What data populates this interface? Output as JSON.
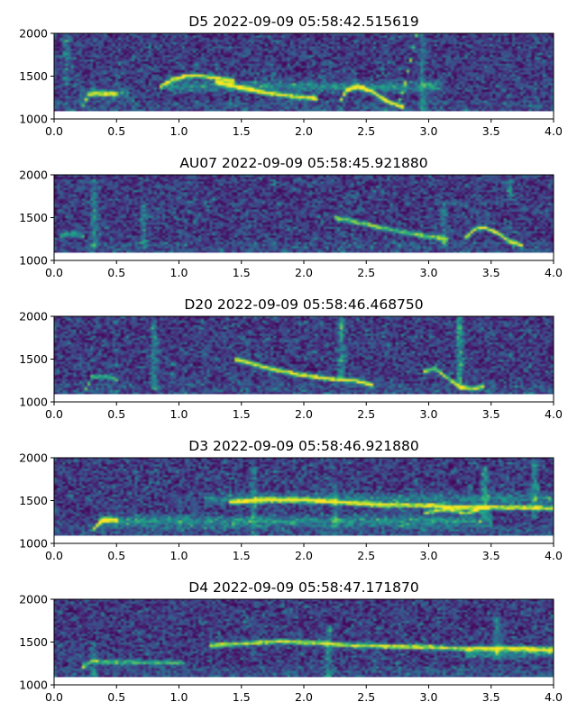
{
  "chart_data": [
    {
      "type": "heatmap",
      "title": "D5 2022-09-09 05:58:42.515619",
      "xlim": [
        0.0,
        4.0
      ],
      "ylim": [
        1000,
        2000
      ],
      "data_ylim": [
        1090,
        2000
      ],
      "x_ticks": [
        "0.0",
        "0.5",
        "1.0",
        "1.5",
        "2.0",
        "2.5",
        "3.0",
        "3.5",
        "4.0"
      ],
      "y_ticks": [
        "1000",
        "1500",
        "2000"
      ],
      "colormap": "viridis",
      "traces": [
        {
          "x": [
            0.22,
            0.28,
            0.36,
            0.45,
            0.52
          ],
          "y": [
            1120,
            1290,
            1300,
            1295,
            1290
          ],
          "w": 0.6
        },
        {
          "x": [
            0.85,
            0.95,
            1.05,
            1.15,
            1.3,
            1.45
          ],
          "y": [
            1380,
            1460,
            1500,
            1505,
            1480,
            1445
          ],
          "w": 0.85
        },
        {
          "x": [
            1.3,
            1.5,
            1.7,
            1.9,
            2.1
          ],
          "y": [
            1430,
            1360,
            1305,
            1265,
            1240
          ],
          "w": 0.9
        },
        {
          "x": [
            2.28,
            2.34,
            2.42,
            2.55,
            2.65,
            2.75,
            2.8
          ],
          "y": [
            1180,
            1330,
            1380,
            1320,
            1220,
            1160,
            1140
          ],
          "w": 0.9
        },
        {
          "x": [
            2.75,
            2.8,
            2.85,
            2.9
          ],
          "y": [
            1150,
            1350,
            1650,
            1980
          ],
          "w": 0.6
        }
      ],
      "bands": [
        {
          "x0": 0.9,
          "x1": 3.1,
          "y": 1380,
          "w": 0.35
        },
        {
          "x0": 0.2,
          "x1": 0.6,
          "y": 1300,
          "w": 0.3
        }
      ],
      "vlines": [
        {
          "x": 0.1,
          "y0": 1400,
          "y1": 2000,
          "w": 0.35
        },
        {
          "x": 2.95,
          "y0": 1100,
          "y1": 2000,
          "w": 0.3
        }
      ]
    },
    {
      "type": "heatmap",
      "title": "AU07 2022-09-09 05:58:45.921880",
      "xlim": [
        0.0,
        4.0
      ],
      "ylim": [
        1000,
        2000
      ],
      "data_ylim": [
        1090,
        2000
      ],
      "x_ticks": [
        "0.0",
        "0.5",
        "1.0",
        "1.5",
        "2.0",
        "2.5",
        "3.0",
        "3.5",
        "4.0"
      ],
      "y_ticks": [
        "1000",
        "1500",
        "2000"
      ],
      "colormap": "viridis",
      "traces": [
        {
          "x": [
            0.05,
            0.15,
            0.25
          ],
          "y": [
            1280,
            1320,
            1280
          ],
          "w": 0.45
        },
        {
          "x": [
            2.25,
            2.5,
            2.75,
            3.0,
            3.15
          ],
          "y": [
            1500,
            1420,
            1340,
            1280,
            1240
          ],
          "w": 0.65
        },
        {
          "x": [
            3.3,
            3.38,
            3.45,
            3.55,
            3.65,
            3.75
          ],
          "y": [
            1270,
            1380,
            1385,
            1320,
            1220,
            1170
          ],
          "w": 0.8
        }
      ],
      "bands": [],
      "vlines": [
        {
          "x": 0.32,
          "y0": 1150,
          "y1": 1950,
          "w": 0.4
        },
        {
          "x": 0.72,
          "y0": 1150,
          "y1": 1700,
          "w": 0.3
        },
        {
          "x": 3.12,
          "y0": 1150,
          "y1": 1700,
          "w": 0.3
        },
        {
          "x": 3.65,
          "y0": 1700,
          "y1": 1950,
          "w": 0.3
        }
      ]
    },
    {
      "type": "heatmap",
      "title": "D20 2022-09-09 05:58:46.468750",
      "xlim": [
        0.0,
        4.0
      ],
      "ylim": [
        1000,
        2000
      ],
      "data_ylim": [
        1090,
        2000
      ],
      "x_ticks": [
        "0.0",
        "0.5",
        "1.0",
        "1.5",
        "2.0",
        "2.5",
        "3.0",
        "3.5",
        "4.0"
      ],
      "y_ticks": [
        "1000",
        "1500",
        "2000"
      ],
      "colormap": "viridis",
      "traces": [
        {
          "x": [
            0.25,
            0.3,
            0.38,
            0.46,
            0.5
          ],
          "y": [
            1130,
            1290,
            1295,
            1290,
            1250
          ],
          "w": 0.5
        },
        {
          "x": [
            1.45,
            1.7,
            1.95,
            2.2,
            2.4,
            2.55
          ],
          "y": [
            1500,
            1400,
            1320,
            1270,
            1250,
            1200
          ],
          "w": 0.85
        },
        {
          "x": [
            2.95,
            3.05,
            3.15,
            3.25,
            3.35,
            3.45
          ],
          "y": [
            1350,
            1390,
            1280,
            1180,
            1150,
            1180
          ],
          "w": 0.7
        }
      ],
      "bands": [],
      "vlines": [
        {
          "x": 0.8,
          "y0": 1150,
          "y1": 1950,
          "w": 0.35
        },
        {
          "x": 2.3,
          "y0": 1300,
          "y1": 2000,
          "w": 0.45
        },
        {
          "x": 3.25,
          "y0": 1150,
          "y1": 2000,
          "w": 0.5
        }
      ]
    },
    {
      "type": "heatmap",
      "title": "D3 2022-09-09 05:58:46.921880",
      "xlim": [
        0.0,
        4.0
      ],
      "ylim": [
        1000,
        2000
      ],
      "data_ylim": [
        1090,
        2000
      ],
      "x_ticks": [
        "0.0",
        "0.5",
        "1.0",
        "1.5",
        "2.0",
        "2.5",
        "3.0",
        "3.5",
        "4.0"
      ],
      "y_ticks": [
        "1000",
        "1500",
        "2000"
      ],
      "colormap": "viridis",
      "traces": [
        {
          "x": [
            0.32,
            0.38,
            0.45,
            0.5
          ],
          "y": [
            1170,
            1260,
            1280,
            1270
          ],
          "w": 0.85
        },
        {
          "x": [
            1.4,
            1.7,
            2.0,
            2.3,
            2.6,
            3.0,
            3.3,
            3.6,
            4.0
          ],
          "y": [
            1480,
            1510,
            1505,
            1480,
            1450,
            1440,
            1420,
            1420,
            1410
          ],
          "w": 0.85
        },
        {
          "x": [
            2.95,
            3.15,
            3.3,
            3.45
          ],
          "y": [
            1350,
            1400,
            1350,
            1420
          ],
          "w": 0.7
        }
      ],
      "bands": [
        {
          "x0": 0.35,
          "x1": 3.5,
          "y": 1260,
          "w": 0.4
        },
        {
          "x0": 1.2,
          "x1": 4.0,
          "y": 1520,
          "w": 0.3
        }
      ],
      "vlines": [
        {
          "x": 1.6,
          "y0": 1100,
          "y1": 1900,
          "w": 0.3
        },
        {
          "x": 2.25,
          "y0": 1100,
          "y1": 1700,
          "w": 0.3
        },
        {
          "x": 3.45,
          "y0": 1300,
          "y1": 1900,
          "w": 0.45
        },
        {
          "x": 3.85,
          "y0": 1300,
          "y1": 2000,
          "w": 0.35
        }
      ]
    },
    {
      "type": "heatmap",
      "title": "D4 2022-09-09 05:58:47.171870",
      "xlim": [
        0.0,
        4.0
      ],
      "ylim": [
        1000,
        2000
      ],
      "data_ylim": [
        1090,
        2000
      ],
      "x_ticks": [
        "0.0",
        "0.5",
        "1.0",
        "1.5",
        "2.0",
        "2.5",
        "3.0",
        "3.5",
        "4.0"
      ],
      "y_ticks": [
        "1000",
        "1500",
        "2000"
      ],
      "colormap": "viridis",
      "traces": [
        {
          "x": [
            0.22,
            0.3,
            0.5,
            0.8,
            1.05
          ],
          "y": [
            1200,
            1275,
            1265,
            1260,
            1255
          ],
          "w": 0.5
        },
        {
          "x": [
            1.25,
            1.5,
            1.8,
            2.1,
            2.4,
            2.7,
            3.0,
            3.3,
            3.6,
            4.0
          ],
          "y": [
            1460,
            1480,
            1510,
            1490,
            1460,
            1450,
            1440,
            1420,
            1430,
            1410
          ],
          "w": 0.8
        }
      ],
      "bands": [
        {
          "x0": 3.3,
          "x1": 4.0,
          "y": 1370,
          "w": 0.35
        }
      ],
      "vlines": [
        {
          "x": 0.32,
          "y0": 1100,
          "y1": 1500,
          "w": 0.3
        },
        {
          "x": 2.2,
          "y0": 1100,
          "y1": 1700,
          "w": 0.4
        },
        {
          "x": 3.55,
          "y0": 1300,
          "y1": 1800,
          "w": 0.35
        }
      ]
    }
  ]
}
